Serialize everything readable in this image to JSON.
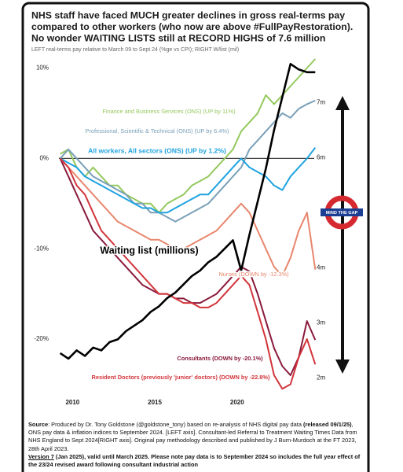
{
  "chart_data": {
    "type": "line",
    "title": [
      "NHS staff have faced MUCH greater declines in gross real-terms pay",
      "compared to other workers (who now are above #FullPayRestoration).",
      "No wonder WAITING LISTS still at RECORD HIGHS of 7.6 million"
    ],
    "subtitle": "LEFT real-terms pay relative to March 09 to Sept 24 (%ge vs CPI); RIGHT W/list (mil)",
    "annotation": "MIND THE GAP",
    "x": [
      2009.25,
      2009.75,
      2010.25,
      2010.75,
      2011.25,
      2011.75,
      2012.25,
      2012.75,
      2013.25,
      2013.75,
      2014.25,
      2014.75,
      2015.25,
      2015.75,
      2016.25,
      2016.75,
      2017.25,
      2017.75,
      2018.25,
      2018.75,
      2019.25,
      2019.75,
      2020.25,
      2020.75,
      2021.25,
      2021.75,
      2022.25,
      2022.75,
      2023.25,
      2023.75,
      2024.25,
      2024.75
    ],
    "xlim": [
      2007.5,
      2026.6
    ],
    "xticks": [
      2010,
      2015,
      2020
    ],
    "ylim": [
      -26,
      11
    ],
    "yticks": [
      {
        "value": 10,
        "label": "10%"
      },
      {
        "value": 0,
        "label": "0%"
      },
      {
        "value": -10,
        "label": "-10%"
      },
      {
        "value": -20,
        "label": "-20%"
      }
    ],
    "y2lim": [
      1.72,
      7.79
    ],
    "y2ticks": [
      {
        "value": 7,
        "label": "7m"
      },
      {
        "value": 6,
        "label": "6m"
      },
      {
        "value": 4,
        "label": "4m"
      },
      {
        "value": 3,
        "label": "3m"
      },
      {
        "value": 2,
        "label": "2m"
      }
    ],
    "reference_line": 0,
    "series": [
      {
        "name": "Finance and Business Services (ONS) (UP by 11%)",
        "color": "#94c95e",
        "values": [
          0.5,
          1,
          -1,
          -2,
          -1,
          -2,
          -3,
          -3,
          -4,
          -4.5,
          -5,
          -5,
          -6,
          -5,
          -4.5,
          -4,
          -3,
          -2.5,
          -2,
          -1,
          0,
          1,
          3,
          4,
          5,
          7,
          6,
          7,
          8,
          9,
          10,
          11
        ]
      },
      {
        "name": "Professional, Scientific & Technical (ONS) (UP by 6.4%)",
        "color": "#7aa0b8",
        "values": [
          0,
          1,
          0,
          -1,
          -2,
          -2.5,
          -3,
          -3.5,
          -4,
          -5,
          -5,
          -6,
          -6,
          -6.5,
          -7,
          -6.5,
          -6,
          -5.5,
          -5,
          -4,
          -3,
          -2,
          -1,
          1,
          2,
          3,
          4,
          5,
          4.5,
          5.5,
          6,
          6.4
        ]
      },
      {
        "name": "All workers, All sectors (ONS) (UP by 1.2%)",
        "color": "#1fa3e0",
        "values": [
          0,
          -0.5,
          -1,
          -2,
          -2.5,
          -3,
          -3.5,
          -4,
          -4.5,
          -5,
          -5.5,
          -5.5,
          -6,
          -6,
          -5.5,
          -5,
          -4.5,
          -4,
          -4,
          -3,
          -2,
          -1,
          0,
          -1,
          -1.5,
          -2,
          -3,
          -3.5,
          -2,
          -1,
          0,
          1.2
        ]
      },
      {
        "name": "Nurses (DOWN by -12.3%)",
        "color": "#e8866d",
        "values": [
          0,
          -1,
          -2,
          -3,
          -4,
          -5,
          -6,
          -7,
          -7.5,
          -8,
          -8.5,
          -9,
          -9,
          -9.5,
          -10,
          -10,
          -9.5,
          -9,
          -8.5,
          -8,
          -7,
          -6,
          -5,
          -6,
          -8,
          -10,
          -12,
          -13,
          -11,
          -8,
          -6,
          -12.3
        ]
      },
      {
        "name": "Consultants (DOWN by -20.1%)",
        "color": "#8a1a3c",
        "values": [
          0,
          -2,
          -4,
          -6,
          -8,
          -9,
          -10,
          -11,
          -12,
          -13,
          -14,
          -14.5,
          -15,
          -15,
          -15.5,
          -15.5,
          -16,
          -16,
          -15.5,
          -15,
          -14,
          -13,
          -12,
          -12.5,
          -15,
          -18,
          -21,
          -23,
          -24,
          -22,
          -18,
          -20.1
        ]
      },
      {
        "name": "Resident Doctors (previously 'junior' doctors) (DOWN by -22.8%)",
        "color": "#d2353b",
        "values": [
          0,
          -1,
          -3,
          -4,
          -6,
          -8,
          -9,
          -10,
          -11,
          -12,
          -13,
          -14,
          -15,
          -15,
          -15.5,
          -16,
          -16,
          -16.5,
          -16.5,
          -16,
          -15,
          -14,
          -13,
          -14,
          -17,
          -20,
          -24,
          -25.5,
          -25,
          -22,
          -20,
          -22.8
        ]
      },
      {
        "name": "Waiting list (millions)",
        "color": "#000000",
        "axis": "y2",
        "values": [
          2.45,
          2.35,
          2.5,
          2.4,
          2.55,
          2.5,
          2.65,
          2.7,
          2.85,
          2.95,
          3.05,
          3.2,
          3.3,
          3.45,
          3.55,
          3.7,
          3.85,
          3.95,
          4.1,
          4.2,
          4.35,
          4.5,
          3.95,
          4.6,
          5.2,
          5.8,
          6.5,
          7.1,
          7.7,
          7.6,
          7.55,
          7.55
        ]
      }
    ]
  },
  "footer": {
    "source": [
      {
        "text": "Source",
        "bold": true
      },
      {
        "text": ": Produced by Dr. Tony Goldstone (@goldstone_tony) based on re-analysis of NHS digital pay data ",
        "bold": false
      },
      {
        "text": "(released 09/1/25)",
        "bold": true
      },
      {
        "text": ", ONS pay data & inflation indices to September 2024. [LEFT axis]. Consultant-led Referral to Treatment Waiting Times Data from NHS England to Sept 2024[RIGHT axis]. Original pay methodology described and published by J Burn-Murdoch at the FT 2023, 28th April 2023.",
        "bold": false
      }
    ],
    "version": [
      {
        "text": "Version 7",
        "bold": true,
        "underline": true
      },
      {
        "text": " (Jan 2025), valid until March 2025. Please note pay data is to September 2024 so includes the full year effect of the 23/24 revised award following consultant industrial action",
        "bold": true
      }
    ]
  }
}
